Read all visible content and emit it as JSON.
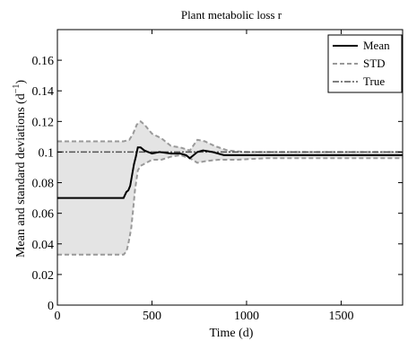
{
  "chart_data": {
    "type": "line",
    "title": "Plant metabolic loss r",
    "xlabel": "Time (d)",
    "ylabel": "Mean and standard deviations (d",
    "ylabel_sup": "−1",
    "ylabel_close": ")",
    "xlim": [
      0,
      1825
    ],
    "ylim": [
      0,
      0.18
    ],
    "xticks": [
      0,
      500,
      1000,
      1500
    ],
    "xtick_labels": [
      "0",
      "500",
      "1000",
      "1500"
    ],
    "yticks": [
      0,
      0.02,
      0.04,
      0.06,
      0.08,
      0.1,
      0.12,
      0.14,
      0.16
    ],
    "ytick_labels": [
      "0",
      "0.02",
      "0.04",
      "0.06",
      "0.08",
      "0.1",
      "0.12",
      "0.14",
      "0.16"
    ],
    "grid": false,
    "legend_position": "top-right",
    "colors": {
      "mean": "#000000",
      "std": "#999999",
      "true": "#555555",
      "band": "#e4e4e4"
    },
    "series": [
      {
        "name": "Mean",
        "style": "solid",
        "x": [
          0,
          350,
          365,
          375,
          385,
          395,
          405,
          415,
          425,
          440,
          460,
          480,
          500,
          540,
          600,
          650,
          680,
          700,
          720,
          740,
          770,
          820,
          880,
          1000,
          1200,
          1400,
          1600,
          1825
        ],
        "y": [
          0.07,
          0.07,
          0.074,
          0.075,
          0.078,
          0.085,
          0.092,
          0.097,
          0.103,
          0.103,
          0.101,
          0.1,
          0.099,
          0.1,
          0.099,
          0.099,
          0.098,
          0.096,
          0.098,
          0.1,
          0.101,
          0.1,
          0.098,
          0.098,
          0.098,
          0.098,
          0.098,
          0.098
        ]
      },
      {
        "name": "STD",
        "style": "dashed",
        "upper": {
          "x": [
            0,
            350,
            380,
            400,
            420,
            440,
            460,
            500,
            550,
            600,
            650,
            700,
            740,
            780,
            830,
            900,
            1000,
            1200,
            1400,
            1600,
            1825
          ],
          "y": [
            0.107,
            0.107,
            0.108,
            0.112,
            0.118,
            0.12,
            0.118,
            0.112,
            0.109,
            0.104,
            0.103,
            0.101,
            0.108,
            0.107,
            0.104,
            0.101,
            0.1,
            0.1,
            0.1,
            0.1,
            0.1
          ]
        },
        "lower": {
          "x": [
            0,
            350,
            365,
            375,
            390,
            400,
            410,
            425,
            440,
            470,
            500,
            550,
            600,
            650,
            700,
            740,
            780,
            850,
            950,
            1100,
            1300,
            1500,
            1700,
            1825
          ],
          "y": [
            0.033,
            0.033,
            0.035,
            0.04,
            0.05,
            0.062,
            0.075,
            0.088,
            0.091,
            0.093,
            0.095,
            0.095,
            0.097,
            0.098,
            0.096,
            0.093,
            0.094,
            0.095,
            0.095,
            0.096,
            0.096,
            0.096,
            0.096,
            0.096
          ]
        }
      },
      {
        "name": "True",
        "style": "dash-dot",
        "x": [
          0,
          1825
        ],
        "y": [
          0.1,
          0.1
        ]
      }
    ]
  }
}
